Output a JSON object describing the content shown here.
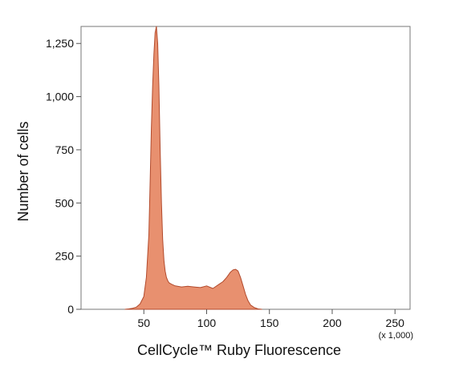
{
  "chart_data": {
    "type": "area",
    "title": "",
    "xlabel": "CellCycle™ Ruby Fluorescence",
    "ylabel": "Number of cells",
    "x_multiplier_label": "(x 1,000)",
    "xlim": [
      0,
      262
    ],
    "ylim": [
      0,
      1330
    ],
    "x_ticks": [
      50,
      100,
      150,
      200,
      250
    ],
    "x_tick_labels": [
      "50",
      "100",
      "150",
      "200",
      "250"
    ],
    "y_ticks": [
      0,
      250,
      500,
      750,
      1000,
      1250
    ],
    "y_tick_labels": [
      "0",
      "250",
      "500",
      "750",
      "1,000",
      "1,250"
    ],
    "grid": false,
    "legend": "none",
    "fill_color": "#e8906f",
    "edge_color": "#b24a2c",
    "series": [
      {
        "x": [
          35,
          38,
          41,
          44,
          47,
          50,
          52,
          54,
          55,
          56,
          57,
          58,
          59,
          60,
          61,
          62,
          63,
          64,
          65,
          66,
          67,
          68,
          69,
          70,
          72,
          75,
          80,
          85,
          90,
          95,
          100,
          105,
          110,
          113,
          116,
          119,
          121,
          123,
          125,
          127,
          129,
          131,
          133,
          135,
          138,
          141,
          144
        ],
        "y": [
          0,
          2,
          5,
          10,
          25,
          60,
          150,
          350,
          600,
          850,
          1050,
          1200,
          1300,
          1330,
          1250,
          1050,
          750,
          500,
          330,
          230,
          180,
          150,
          135,
          125,
          118,
          110,
          105,
          108,
          105,
          102,
          110,
          98,
          118,
          130,
          150,
          175,
          185,
          188,
          180,
          150,
          110,
          70,
          40,
          20,
          8,
          2,
          0
        ]
      }
    ]
  }
}
